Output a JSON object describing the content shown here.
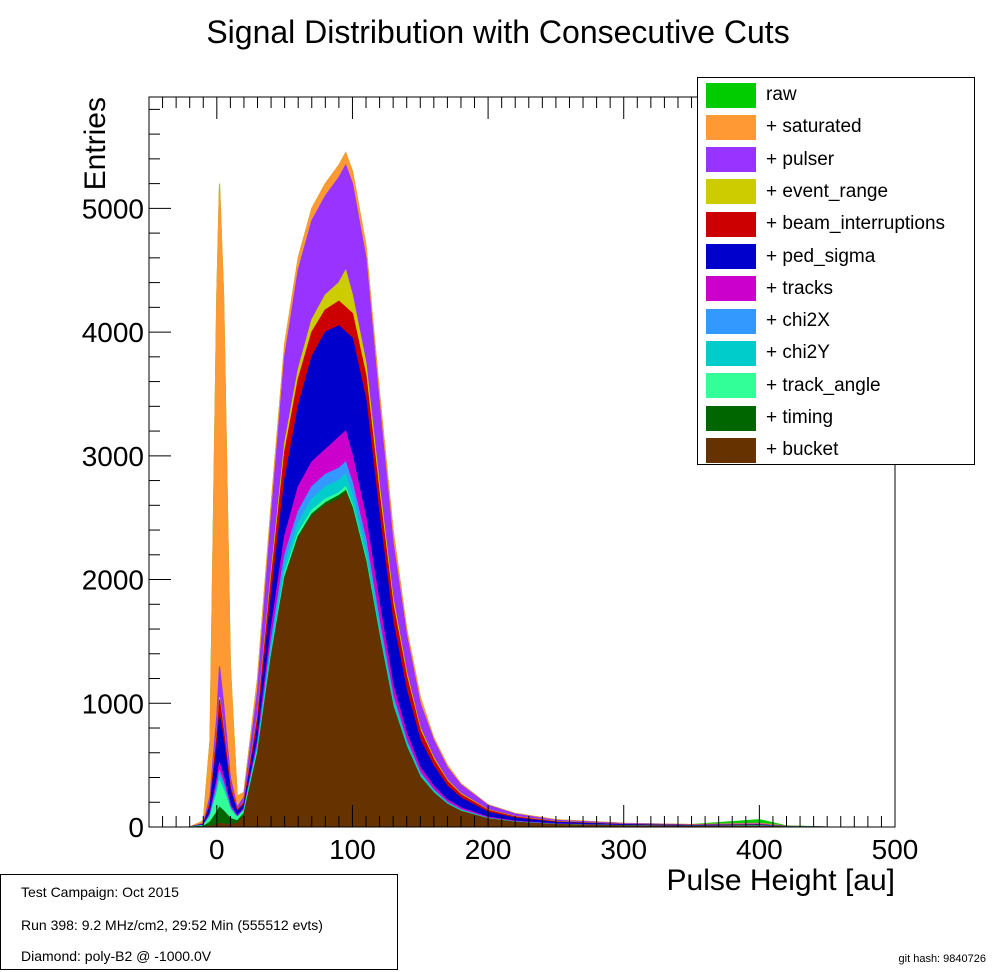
{
  "page": {
    "title": "Signal Distribution with Consecutive Cuts",
    "git_hash": "git hash: 9840726"
  },
  "info_box": {
    "lines": [
      "Test Campaign: Oct 2015",
      "Run 398: 9.2 MHz/cm2, 29:52 Min (555512 evts)",
      "Diamond: poly-B2 @ -1000.0V"
    ]
  },
  "chart_data": {
    "type": "area",
    "title": "Signal Distribution with Consecutive Cuts",
    "xlabel": "Pulse Height [au]",
    "ylabel": "Entries",
    "xlim": [
      -50,
      500
    ],
    "ylim": [
      0,
      5900
    ],
    "x_ticks": [
      0,
      100,
      200,
      300,
      400,
      500
    ],
    "y_ticks": [
      0,
      1000,
      2000,
      3000,
      4000,
      5000
    ],
    "legend_position": "top-right",
    "series": [
      {
        "name": "raw",
        "color": "#00cc00"
      },
      {
        "name": "+ saturated",
        "color": "#ff9933"
      },
      {
        "name": "+ pulser",
        "color": "#9933ff"
      },
      {
        "name": "+ event_range",
        "color": "#cccc00"
      },
      {
        "name": "+ beam_interruptions",
        "color": "#cc0000"
      },
      {
        "name": "+ ped_sigma",
        "color": "#0000cc"
      },
      {
        "name": "+ tracks",
        "color": "#cc00cc"
      },
      {
        "name": "+ chi2X",
        "color": "#3399ff"
      },
      {
        "name": "+ chi2Y",
        "color": "#00cccc"
      },
      {
        "name": "+ track_angle",
        "color": "#33ff99"
      },
      {
        "name": "+ timing",
        "color": "#006600"
      },
      {
        "name": "+ bucket",
        "color": "#663300"
      }
    ],
    "x": [
      -20,
      -10,
      -5,
      0,
      2,
      5,
      10,
      15,
      20,
      30,
      40,
      50,
      60,
      70,
      80,
      90,
      95,
      100,
      110,
      120,
      130,
      140,
      150,
      160,
      170,
      180,
      200,
      220,
      250,
      300,
      350,
      400,
      420,
      450
    ],
    "envelopes": {
      "raw": [
        0,
        50,
        700,
        4300,
        5200,
        4300,
        1300,
        250,
        280,
        1200,
        2600,
        3900,
        4600,
        5000,
        5200,
        5350,
        5450,
        5300,
        4700,
        3500,
        2400,
        1600,
        1050,
        720,
        500,
        350,
        180,
        110,
        60,
        30,
        20,
        60,
        10,
        0
      ],
      "+ saturated": [
        0,
        50,
        700,
        4300,
        5200,
        4300,
        1300,
        250,
        280,
        1200,
        2600,
        3900,
        4600,
        5000,
        5200,
        5350,
        5450,
        5300,
        4700,
        3500,
        2400,
        1600,
        1050,
        720,
        500,
        350,
        180,
        110,
        60,
        30,
        20,
        30,
        8,
        0
      ],
      "+ pulser": [
        0,
        30,
        250,
        900,
        1300,
        1000,
        400,
        160,
        240,
        1100,
        2500,
        3800,
        4500,
        4900,
        5100,
        5250,
        5350,
        5200,
        4600,
        3400,
        2300,
        1550,
        1000,
        700,
        480,
        340,
        175,
        105,
        55,
        28,
        18,
        25,
        6,
        0
      ],
      "+ event_range": [
        0,
        25,
        200,
        750,
        1050,
        800,
        330,
        140,
        200,
        900,
        2050,
        3100,
        3700,
        4100,
        4300,
        4400,
        4500,
        4300,
        3750,
        2750,
        1850,
        1250,
        800,
        560,
        380,
        270,
        140,
        85,
        45,
        22,
        15,
        20,
        5,
        0
      ],
      "+ beam_interruptions": [
        0,
        24,
        195,
        730,
        1030,
        785,
        325,
        137,
        196,
        880,
        2000,
        3030,
        3620,
        4000,
        4180,
        4250,
        4200,
        4150,
        3650,
        2680,
        1800,
        1220,
        780,
        545,
        370,
        262,
        136,
        82,
        43,
        21,
        14,
        19,
        5,
        0
      ],
      "+ ped_sigma": [
        0,
        22,
        170,
        640,
        900,
        700,
        290,
        125,
        180,
        810,
        1850,
        2800,
        3400,
        3800,
        4000,
        4050,
        4000,
        3950,
        3450,
        2500,
        1650,
        1100,
        700,
        490,
        330,
        235,
        120,
        72,
        38,
        19,
        12,
        17,
        4,
        0
      ],
      "+ tracks": [
        0,
        15,
        110,
        380,
        520,
        410,
        180,
        90,
        150,
        700,
        1600,
        2350,
        2750,
        2950,
        3050,
        3150,
        3200,
        3000,
        2500,
        1800,
        1150,
        760,
        480,
        330,
        220,
        155,
        80,
        48,
        25,
        12,
        8,
        12,
        3,
        0
      ],
      "+ chi2X": [
        0,
        13,
        95,
        330,
        450,
        360,
        160,
        82,
        140,
        660,
        1500,
        2200,
        2550,
        2750,
        2850,
        2900,
        2950,
        2780,
        2320,
        1660,
        1060,
        700,
        440,
        300,
        200,
        140,
        72,
        43,
        22,
        11,
        7,
        11,
        3,
        0
      ],
      "+ chi2Y": [
        0,
        12,
        88,
        300,
        410,
        330,
        150,
        78,
        135,
        640,
        1450,
        2120,
        2460,
        2650,
        2750,
        2800,
        2850,
        2680,
        2240,
        1600,
        1020,
        675,
        425,
        290,
        193,
        135,
        70,
        41,
        21,
        10,
        7,
        10,
        2,
        0
      ],
      "+ track_angle": [
        0,
        11,
        80,
        270,
        370,
        300,
        140,
        75,
        130,
        620,
        1400,
        2050,
        2380,
        2560,
        2650,
        2700,
        2750,
        2600,
        2170,
        1550,
        990,
        655,
        410,
        280,
        187,
        130,
        68,
        40,
        20,
        10,
        6,
        10,
        2,
        0
      ],
      "+ timing": [
        0,
        6,
        40,
        120,
        160,
        130,
        70,
        50,
        110,
        600,
        1380,
        2020,
        2350,
        2530,
        2620,
        2680,
        2720,
        2580,
        2150,
        1540,
        980,
        650,
        405,
        277,
        185,
        128,
        67,
        39,
        20,
        10,
        6,
        8,
        2,
        0
      ],
      "+ bucket": [
        0,
        0,
        5,
        20,
        30,
        25,
        20,
        30,
        90,
        580,
        1350,
        2000,
        2330,
        2510,
        2600,
        2650,
        2700,
        2560,
        2130,
        1520,
        970,
        640,
        400,
        273,
        182,
        126,
        66,
        38,
        19,
        9,
        5,
        6,
        1,
        0
      ]
    }
  }
}
